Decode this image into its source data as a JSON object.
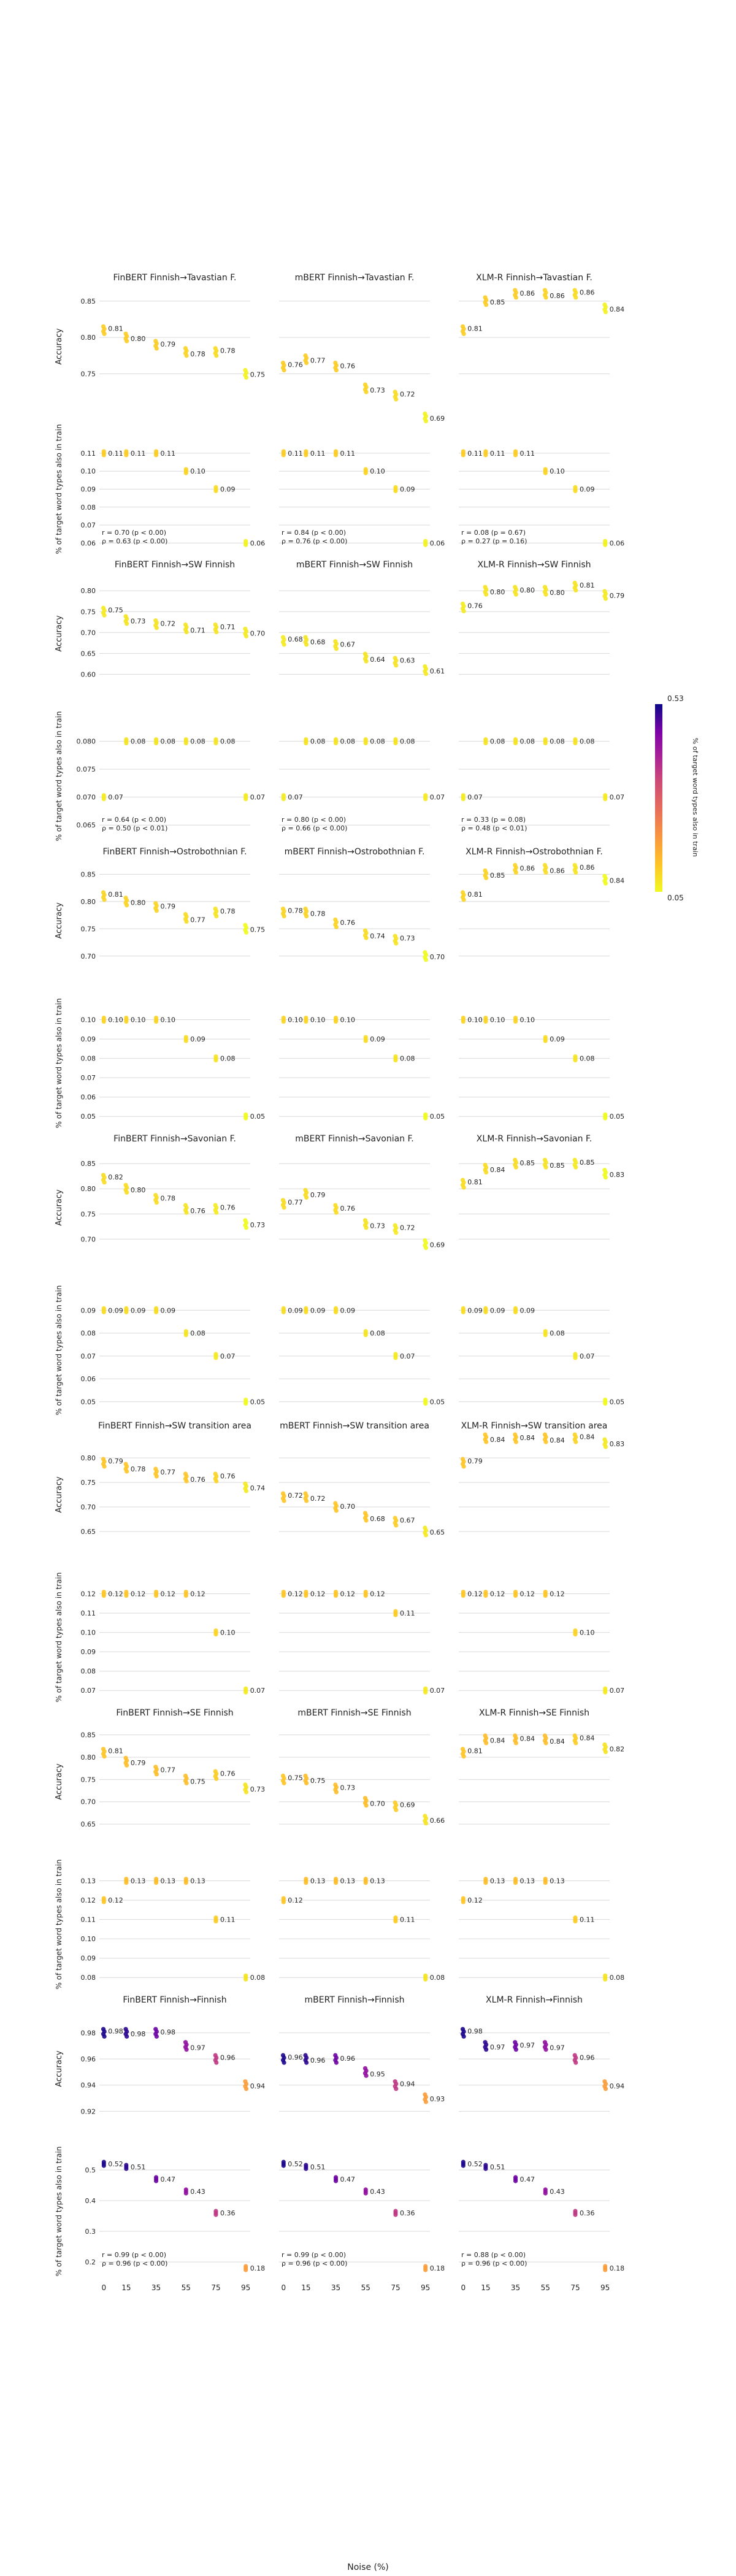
{
  "figure": {
    "x_axis_label": "Noise (%)",
    "y_label_accuracy": "Accuracy",
    "y_label_overlap": "% of target word types also in train",
    "colorbar": {
      "label": "% of target word types also in train",
      "max_label": "0.53",
      "min_label": "0.05",
      "min": 0.05,
      "max": 0.53,
      "colormap": "plasma"
    },
    "models": [
      "FinBERT",
      "mBERT",
      "XLM-R"
    ]
  },
  "chart_data": [
    {
      "type": "scatter",
      "row": 0,
      "targets": "Finnish→Tavastian F.",
      "x": [
        0,
        15,
        35,
        55,
        75,
        95
      ],
      "panels": [
        {
          "title": "FinBERT Finnish→Tavastian F.",
          "acc": [
            0.81,
            0.8,
            0.79,
            0.78,
            0.78,
            0.75
          ],
          "ov": [
            0.11,
            0.11,
            0.11,
            0.1,
            0.09,
            0.06
          ],
          "acc_ylim": [
            0.72,
            0.855
          ],
          "acc_ticks": [
            "0.85",
            "0.80",
            "0.75"
          ],
          "ov_ylim": [
            0.055,
            0.125
          ],
          "ov_ticks": [
            "0.11",
            "0.10",
            "0.09",
            "0.08",
            "0.07",
            "0.06"
          ],
          "stats": [
            "r = 0.70 (p < 0.00)",
            "ρ = 0.63 (p < 0.00)"
          ]
        },
        {
          "title": "mBERT Finnish→Tavastian F.",
          "acc": [
            0.76,
            0.77,
            0.76,
            0.73,
            0.72,
            0.69
          ],
          "ov": [
            0.11,
            0.11,
            0.11,
            0.1,
            0.09,
            0.06
          ],
          "stats": [
            "r = 0.84 (p < 0.00)",
            "ρ = 0.76 (p < 0.00)"
          ]
        },
        {
          "title": "XLM-R Finnish→Tavastian F.",
          "acc": [
            0.81,
            0.85,
            0.86,
            0.86,
            0.86,
            0.84
          ],
          "ov": [
            0.11,
            0.11,
            0.11,
            0.1,
            0.09,
            0.06
          ],
          "stats": [
            "r = 0.08 (p = 0.67)",
            "ρ = 0.27 (p = 0.16)"
          ]
        }
      ]
    },
    {
      "type": "scatter",
      "row": 1,
      "targets": "Finnish→SW Finnish",
      "x": [
        0,
        15,
        35,
        55,
        75,
        95
      ],
      "panels": [
        {
          "title": "FinBERT Finnish→SW Finnish",
          "acc": [
            0.75,
            0.73,
            0.72,
            0.71,
            0.71,
            0.7
          ],
          "ov": [
            0.07,
            0.08,
            0.08,
            0.08,
            0.08,
            0.07
          ],
          "acc_ylim": [
            0.58,
            0.815
          ],
          "acc_ticks": [
            "0.80",
            "0.75",
            "0.70",
            "0.65",
            "0.60"
          ],
          "ov_ylim": [
            0.0625,
            0.085
          ],
          "ov_ticks": [
            "0.080",
            "0.075",
            "0.070",
            "0.065"
          ],
          "stats": [
            "r = 0.64 (p < 0.00)",
            "ρ = 0.50 (p < 0.01)"
          ]
        },
        {
          "title": "mBERT Finnish→SW Finnish",
          "acc": [
            0.68,
            0.68,
            0.67,
            0.64,
            0.63,
            0.61
          ],
          "ov": [
            0.07,
            0.08,
            0.08,
            0.08,
            0.08,
            0.07
          ],
          "stats": [
            "r = 0.80 (p < 0.00)",
            "ρ = 0.66 (p < 0.00)"
          ]
        },
        {
          "title": "XLM-R Finnish→SW Finnish",
          "acc": [
            0.76,
            0.8,
            0.8,
            0.8,
            0.81,
            0.79
          ],
          "ov": [
            0.07,
            0.08,
            0.08,
            0.08,
            0.08,
            0.07
          ],
          "stats": [
            "r = 0.33 (p = 0.08)",
            "ρ = 0.48 (p < 0.01)"
          ]
        }
      ]
    },
    {
      "type": "scatter",
      "row": 2,
      "targets": "Finnish→Ostrobothnian F.",
      "x": [
        0,
        15,
        35,
        55,
        75,
        95
      ],
      "panels": [
        {
          "title": "FinBERT Finnish→Ostrobothnian F.",
          "acc": [
            0.81,
            0.8,
            0.79,
            0.77,
            0.78,
            0.75
          ],
          "ov": [
            0.1,
            0.1,
            0.1,
            0.09,
            0.08,
            0.05
          ],
          "acc_ylim": [
            0.675,
            0.855
          ],
          "acc_ticks": [
            "0.85",
            "0.80",
            "0.75",
            "0.70"
          ],
          "ov_ylim": [
            0.045,
            0.11
          ],
          "ov_ticks": [
            "0.10",
            "0.09",
            "0.08",
            "0.07",
            "0.06",
            "0.05"
          ],
          "stats": []
        },
        {
          "title": "mBERT Finnish→Ostrobothnian F.",
          "acc": [
            0.78,
            0.78,
            0.76,
            0.74,
            0.73,
            0.7
          ],
          "ov": [
            0.1,
            0.1,
            0.1,
            0.09,
            0.08,
            0.05
          ],
          "stats": []
        },
        {
          "title": "XLM-R Finnish→Ostrobothnian F.",
          "acc": [
            0.81,
            0.85,
            0.86,
            0.86,
            0.86,
            0.84
          ],
          "ov": [
            0.1,
            0.1,
            0.1,
            0.09,
            0.08,
            0.05
          ],
          "stats": []
        }
      ]
    },
    {
      "type": "scatter",
      "row": 3,
      "targets": "Finnish→Savonian F.",
      "x": [
        0,
        15,
        35,
        55,
        75,
        95
      ],
      "panels": [
        {
          "title": "FinBERT Finnish→Savonian F.",
          "acc": [
            0.82,
            0.8,
            0.78,
            0.76,
            0.76,
            0.73
          ],
          "ov": [
            0.09,
            0.09,
            0.09,
            0.08,
            0.07,
            0.05
          ],
          "acc_ylim": [
            0.665,
            0.86
          ],
          "acc_ticks": [
            "0.85",
            "0.80",
            "0.75",
            "0.70"
          ],
          "ov_ylim": [
            0.045,
            0.1
          ],
          "ov_ticks": [
            "0.09",
            "0.08",
            "0.07",
            "0.06",
            "0.05"
          ],
          "stats": []
        },
        {
          "title": "mBERT Finnish→Savonian F.",
          "acc": [
            0.77,
            0.79,
            0.76,
            0.73,
            0.72,
            0.69
          ],
          "ov": [
            0.09,
            0.09,
            0.09,
            0.08,
            0.07,
            0.05
          ],
          "stats": []
        },
        {
          "title": "XLM-R Finnish→Savonian F.",
          "acc": [
            0.81,
            0.84,
            0.85,
            0.85,
            0.85,
            0.83
          ],
          "ov": [
            0.09,
            0.09,
            0.09,
            0.08,
            0.07,
            0.05
          ],
          "stats": []
        }
      ]
    },
    {
      "type": "scatter",
      "row": 4,
      "targets": "Finnish→SW transition area",
      "x": [
        0,
        15,
        35,
        55,
        75,
        95
      ],
      "panels": [
        {
          "title": "FinBERT Finnish→SW transition area",
          "acc": [
            0.79,
            0.78,
            0.77,
            0.76,
            0.76,
            0.74
          ],
          "ov": [
            0.12,
            0.12,
            0.12,
            0.12,
            0.1,
            0.07
          ],
          "acc_ylim": [
            0.625,
            0.825
          ],
          "acc_ticks": [
            "0.80",
            "0.75",
            "0.70",
            "0.65"
          ],
          "ov_ylim": [
            0.065,
            0.13
          ],
          "ov_ticks": [
            "0.12",
            "0.11",
            "0.10",
            "0.09",
            "0.08",
            "0.07"
          ],
          "stats": []
        },
        {
          "title": "mBERT Finnish→SW transition area",
          "acc": [
            0.72,
            0.72,
            0.7,
            0.68,
            0.67,
            0.65
          ],
          "ov": [
            0.12,
            0.12,
            0.12,
            0.12,
            0.11,
            0.07
          ],
          "stats": []
        },
        {
          "title": "XLM-R Finnish→SW transition area",
          "acc": [
            0.79,
            0.84,
            0.84,
            0.84,
            0.84,
            0.83
          ],
          "ov": [
            0.12,
            0.12,
            0.12,
            0.12,
            0.1,
            0.07
          ],
          "stats": []
        }
      ]
    },
    {
      "type": "scatter",
      "row": 5,
      "targets": "Finnish→SE Finnish",
      "x": [
        0,
        15,
        35,
        55,
        75,
        95
      ],
      "panels": [
        {
          "title": "FinBERT Finnish→SE Finnish",
          "acc": [
            0.81,
            0.79,
            0.77,
            0.75,
            0.76,
            0.73
          ],
          "ov": [
            0.12,
            0.13,
            0.13,
            0.13,
            0.11,
            0.08
          ],
          "acc_ylim": [
            0.635,
            0.855
          ],
          "acc_ticks": [
            "0.85",
            "0.80",
            "0.75",
            "0.70",
            "0.65"
          ],
          "ov_ylim": [
            0.075,
            0.14
          ],
          "ov_ticks": [
            "0.13",
            "0.12",
            "0.11",
            "0.10",
            "0.09",
            "0.08"
          ],
          "stats": []
        },
        {
          "title": "mBERT Finnish→SE Finnish",
          "acc": [
            0.75,
            0.75,
            0.73,
            0.7,
            0.69,
            0.66
          ],
          "ov": [
            0.12,
            0.13,
            0.13,
            0.13,
            0.11,
            0.08
          ],
          "stats": []
        },
        {
          "title": "XLM-R Finnish→SE Finnish",
          "acc": [
            0.81,
            0.84,
            0.84,
            0.84,
            0.84,
            0.82
          ],
          "ov": [
            0.12,
            0.13,
            0.13,
            0.13,
            0.11,
            0.08
          ],
          "stats": []
        }
      ]
    },
    {
      "type": "scatter",
      "row": 6,
      "targets": "Finnish→Finnish",
      "x": [
        0,
        15,
        35,
        55,
        75,
        95
      ],
      "panels": [
        {
          "title": "FinBERT Finnish→Finnish",
          "acc": [
            0.98,
            0.98,
            0.98,
            0.97,
            0.96,
            0.94
          ],
          "ov": [
            0.52,
            0.51,
            0.47,
            0.43,
            0.36,
            0.18
          ],
          "acc_ylim": [
            0.915,
            0.99
          ],
          "acc_ticks": [
            "0.98",
            "0.96",
            "0.94",
            "0.92"
          ],
          "ov_ylim": [
            0.16,
            0.57
          ],
          "ov_ticks": [
            "0.5",
            "0.4",
            "0.3",
            "0.2"
          ],
          "stats": [
            "r = 0.99 (p < 0.00)",
            "ρ = 0.96 (p < 0.00)"
          ]
        },
        {
          "title": "mBERT Finnish→Finnish",
          "acc": [
            0.96,
            0.96,
            0.96,
            0.95,
            0.94,
            0.93
          ],
          "ov": [
            0.52,
            0.51,
            0.47,
            0.43,
            0.36,
            0.18
          ],
          "stats": [
            "r = 0.99 (p < 0.00)",
            "ρ = 0.96 (p < 0.00)"
          ]
        },
        {
          "title": "XLM-R Finnish→Finnish",
          "acc": [
            0.98,
            0.97,
            0.97,
            0.97,
            0.96,
            0.94
          ],
          "ov": [
            0.52,
            0.51,
            0.47,
            0.43,
            0.36,
            0.18
          ],
          "stats": [
            "r = 0.88 (p < 0.00)",
            "ρ = 0.96 (p < 0.00)"
          ]
        }
      ]
    }
  ]
}
